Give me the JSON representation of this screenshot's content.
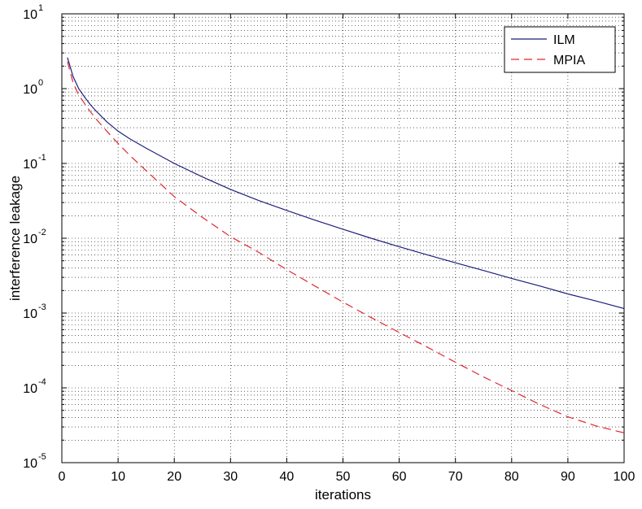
{
  "chart_data": {
    "type": "line",
    "title": "",
    "xlabel": "iterations",
    "ylabel": "interference leakage",
    "x_scale": "linear",
    "y_scale": "log",
    "xlim": [
      0,
      100
    ],
    "ylim": [
      1e-05,
      10
    ],
    "x_ticks": [
      0,
      10,
      20,
      30,
      40,
      50,
      60,
      70,
      80,
      90,
      100
    ],
    "y_ticks": [
      {
        "base": "10",
        "exp": "-5",
        "value": 1e-05
      },
      {
        "base": "10",
        "exp": "-4",
        "value": 0.0001
      },
      {
        "base": "10",
        "exp": "-3",
        "value": 0.001
      },
      {
        "base": "10",
        "exp": "-2",
        "value": 0.01
      },
      {
        "base": "10",
        "exp": "-1",
        "value": 0.1
      },
      {
        "base": "10",
        "exp": "0",
        "value": 1
      },
      {
        "base": "10",
        "exp": "1",
        "value": 10
      }
    ],
    "grid": true,
    "legend_position": "top-right",
    "series": [
      {
        "name": "ILM",
        "color": "#1f1f7a",
        "style": "solid",
        "x": [
          1,
          2,
          3,
          4,
          5,
          6,
          8,
          10,
          12,
          15,
          20,
          25,
          30,
          35,
          40,
          45,
          50,
          55,
          60,
          65,
          70,
          75,
          80,
          85,
          90,
          95,
          100
        ],
        "y": [
          2.6,
          1.45,
          1.0,
          0.78,
          0.62,
          0.51,
          0.36,
          0.27,
          0.215,
          0.16,
          0.1,
          0.066,
          0.045,
          0.032,
          0.0235,
          0.0175,
          0.0132,
          0.01,
          0.0077,
          0.006,
          0.0047,
          0.0037,
          0.0029,
          0.0023,
          0.0018,
          0.00145,
          0.00115
        ]
      },
      {
        "name": "MPIA",
        "color": "#e0262d",
        "style": "dashed",
        "x": [
          1,
          2,
          3,
          4,
          5,
          6,
          8,
          10,
          12,
          15,
          20,
          25,
          30,
          35,
          40,
          45,
          50,
          55,
          60,
          65,
          70,
          75,
          80,
          85,
          90,
          95,
          100
        ],
        "y": [
          2.3,
          1.2,
          0.82,
          0.64,
          0.5,
          0.4,
          0.27,
          0.185,
          0.13,
          0.08,
          0.036,
          0.019,
          0.0105,
          0.0065,
          0.0038,
          0.0023,
          0.0014,
          0.00087,
          0.00055,
          0.00035,
          0.00022,
          0.00014,
          9.2e-05,
          6e-05,
          4.1e-05,
          3.1e-05,
          2.5e-05
        ]
      }
    ]
  }
}
